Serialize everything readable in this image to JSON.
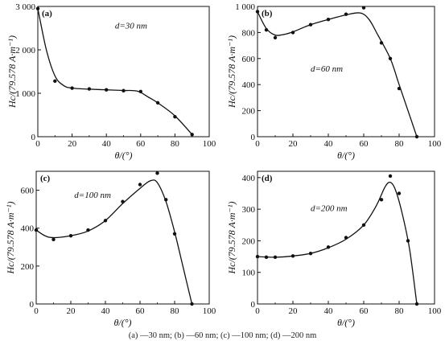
{
  "caption": "(a) —30 nm; (b) —60 nm; (c) —100 nm; (d) —200 nm",
  "chart_data": [
    {
      "type": "line",
      "panel_label": "(a)",
      "annotation": "d=30 nm",
      "xlabel": "θ/(°)",
      "ylabel": "Hc/(79.578 A·m⁻¹)",
      "xlim": [
        0,
        100
      ],
      "ylim": [
        0,
        3000
      ],
      "xticks": [
        0,
        20,
        40,
        60,
        80,
        100
      ],
      "yticks": [
        0,
        1000,
        2000,
        3000
      ],
      "ytick_labels": [
        "0",
        "1 000",
        "2 000",
        "3 000"
      ],
      "points": [
        [
          0,
          2950
        ],
        [
          10,
          1280
        ],
        [
          20,
          1120
        ],
        [
          30,
          1100
        ],
        [
          40,
          1080
        ],
        [
          50,
          1060
        ],
        [
          60,
          1040
        ],
        [
          70,
          780
        ],
        [
          80,
          460
        ],
        [
          90,
          50
        ]
      ],
      "curve": [
        [
          0,
          2950
        ],
        [
          5,
          2000
        ],
        [
          10,
          1400
        ],
        [
          15,
          1180
        ],
        [
          20,
          1120
        ],
        [
          30,
          1095
        ],
        [
          40,
          1080
        ],
        [
          50,
          1065
        ],
        [
          58,
          1050
        ],
        [
          65,
          900
        ],
        [
          70,
          780
        ],
        [
          80,
          480
        ],
        [
          90,
          50
        ]
      ]
    },
    {
      "type": "line",
      "panel_label": "(b)",
      "annotation": "d=60 nm",
      "xlabel": "θ/(°)",
      "ylabel": "Hc/(79.578 A·m⁻¹)",
      "xlim": [
        0,
        100
      ],
      "ylim": [
        0,
        1000
      ],
      "xticks": [
        0,
        20,
        40,
        60,
        80,
        100
      ],
      "yticks": [
        0,
        200,
        400,
        600,
        800,
        1000
      ],
      "ytick_labels": [
        "0",
        "200",
        "400",
        "600",
        "800",
        "1 000"
      ],
      "points": [
        [
          0,
          960
        ],
        [
          5,
          820
        ],
        [
          10,
          760
        ],
        [
          20,
          800
        ],
        [
          30,
          860
        ],
        [
          40,
          900
        ],
        [
          50,
          940
        ],
        [
          60,
          990
        ],
        [
          70,
          720
        ],
        [
          75,
          600
        ],
        [
          80,
          370
        ],
        [
          90,
          0
        ]
      ],
      "curve": [
        [
          0,
          960
        ],
        [
          5,
          830
        ],
        [
          10,
          780
        ],
        [
          15,
          785
        ],
        [
          20,
          805
        ],
        [
          30,
          860
        ],
        [
          40,
          900
        ],
        [
          50,
          935
        ],
        [
          58,
          950
        ],
        [
          63,
          900
        ],
        [
          68,
          780
        ],
        [
          75,
          600
        ],
        [
          80,
          400
        ],
        [
          85,
          200
        ],
        [
          90,
          0
        ]
      ]
    },
    {
      "type": "line",
      "panel_label": "(c)",
      "annotation": "d=100 nm",
      "xlabel": "θ/(°)",
      "ylabel": "Hc/(79.578 A·m⁻¹)",
      "xlim": [
        0,
        100
      ],
      "ylim": [
        0,
        700
      ],
      "xticks": [
        0,
        20,
        40,
        60,
        80,
        100
      ],
      "yticks": [
        0,
        200,
        400,
        600
      ],
      "ytick_labels": [
        "0",
        "200",
        "400",
        "600"
      ],
      "points": [
        [
          0,
          390
        ],
        [
          10,
          340
        ],
        [
          20,
          360
        ],
        [
          30,
          390
        ],
        [
          40,
          440
        ],
        [
          50,
          540
        ],
        [
          60,
          630
        ],
        [
          70,
          690
        ],
        [
          75,
          550
        ],
        [
          80,
          370
        ],
        [
          90,
          0
        ]
      ],
      "curve": [
        [
          0,
          390
        ],
        [
          5,
          360
        ],
        [
          10,
          350
        ],
        [
          20,
          360
        ],
        [
          30,
          385
        ],
        [
          40,
          440
        ],
        [
          50,
          530
        ],
        [
          60,
          610
        ],
        [
          66,
          650
        ],
        [
          70,
          640
        ],
        [
          75,
          540
        ],
        [
          80,
          380
        ],
        [
          85,
          190
        ],
        [
          90,
          0
        ]
      ]
    },
    {
      "type": "line",
      "panel_label": "(d)",
      "annotation": "d=200 nm",
      "xlabel": "θ/(°)",
      "ylabel": "Hc/(79.578 A·m⁻¹)",
      "xlim": [
        0,
        100
      ],
      "ylim": [
        0,
        420
      ],
      "xticks": [
        0,
        20,
        40,
        60,
        80,
        100
      ],
      "yticks": [
        0,
        100,
        200,
        300,
        400
      ],
      "ytick_labels": [
        "0",
        "100",
        "200",
        "300",
        "400"
      ],
      "points": [
        [
          0,
          150
        ],
        [
          5,
          148
        ],
        [
          10,
          148
        ],
        [
          20,
          152
        ],
        [
          30,
          160
        ],
        [
          40,
          180
        ],
        [
          50,
          210
        ],
        [
          60,
          250
        ],
        [
          70,
          330
        ],
        [
          75,
          405
        ],
        [
          80,
          350
        ],
        [
          85,
          200
        ],
        [
          90,
          0
        ]
      ],
      "curve": [
        [
          0,
          150
        ],
        [
          10,
          148
        ],
        [
          20,
          152
        ],
        [
          30,
          160
        ],
        [
          40,
          178
        ],
        [
          50,
          205
        ],
        [
          60,
          250
        ],
        [
          67,
          310
        ],
        [
          72,
          370
        ],
        [
          75,
          385
        ],
        [
          78,
          360
        ],
        [
          82,
          280
        ],
        [
          86,
          170
        ],
        [
          90,
          0
        ]
      ]
    }
  ]
}
